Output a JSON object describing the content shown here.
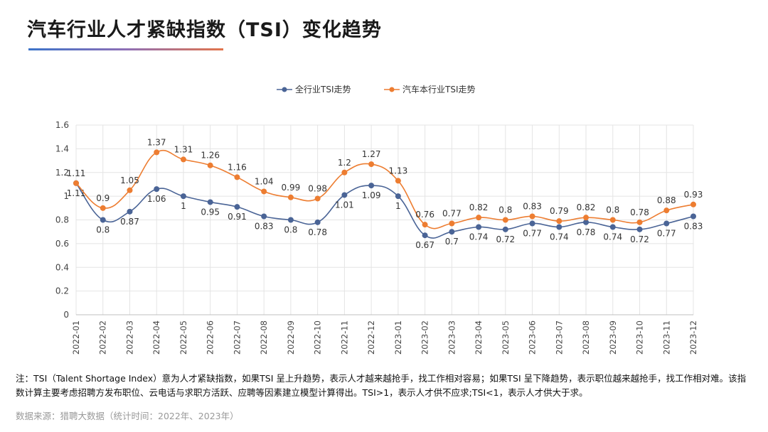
{
  "page": {
    "title": "汽车行业人才紧缺指数（TSI）变化趋势",
    "note": "注：TSI（Talent Shortage Index）意为人才紧缺指数，如果TSI 呈上升趋势，表示人才越来越抢手，找工作相对容易；如果TSI 呈下降趋势，表示职位越来越抢手，找工作相对难。该指数计算主要考虑招聘方发布职位、云电话与求职方活跃、应聘等因素建立模型计算得出。TSI>1，表示人才供不应求;TSI<1，表示人才供大于求。",
    "source": "数据来源：猎聘大数据（统计时间：2022年、2023年）"
  },
  "chart_data": {
    "type": "line",
    "title": "",
    "xlabel": "",
    "ylabel": "",
    "ylim": [
      0,
      1.6
    ],
    "yticks": [
      0,
      0.2,
      0.4,
      0.6,
      0.8,
      1,
      1.2,
      1.4,
      1.6
    ],
    "grid": true,
    "legend_position": "top-center",
    "categories": [
      "2022-01",
      "2022-02",
      "2022-03",
      "2022-04",
      "2022-05",
      "2022-06",
      "2022-07",
      "2022-08",
      "2022-09",
      "2022-10",
      "2022-11",
      "2022-12",
      "2023-01",
      "2023-02",
      "2023-03",
      "2023-04",
      "2023-05",
      "2023-06",
      "2023-07",
      "2023-08",
      "2023-09",
      "2023-10",
      "2023-11",
      "2023-12"
    ],
    "series": [
      {
        "name": "全行业TSI走势",
        "color": "#4a6496",
        "label_position": "below",
        "values": [
          1.11,
          0.8,
          0.87,
          1.06,
          1,
          0.95,
          0.91,
          0.83,
          0.8,
          0.78,
          1.01,
          1.09,
          1,
          0.67,
          0.7,
          0.74,
          0.72,
          0.77,
          0.74,
          0.78,
          0.74,
          0.72,
          0.77,
          0.83
        ]
      },
      {
        "name": "汽车本行业TSI走势",
        "color": "#ed7d31",
        "label_position": "above",
        "values": [
          1.11,
          0.9,
          1.05,
          1.37,
          1.31,
          1.26,
          1.16,
          1.04,
          0.99,
          0.98,
          1.2,
          1.27,
          1.13,
          0.76,
          0.77,
          0.82,
          0.8,
          0.83,
          0.79,
          0.82,
          0.8,
          0.78,
          0.88,
          0.93
        ]
      }
    ]
  }
}
